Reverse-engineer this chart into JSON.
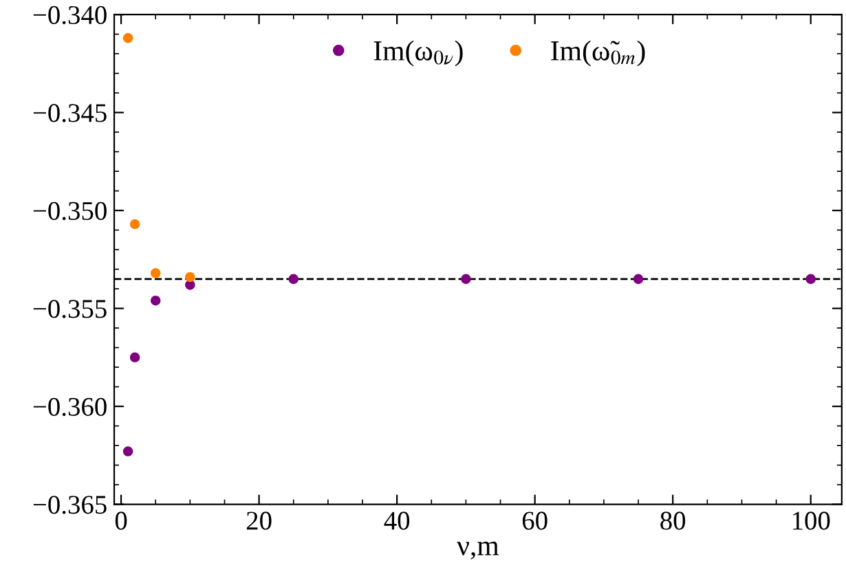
{
  "chart_data": {
    "type": "scatter",
    "xlabel": "ν,m",
    "series": [
      {
        "name": "Im(ω$_{0ν}$)",
        "color": "#800080",
        "x": [
          1,
          2,
          5,
          10,
          25,
          50,
          75,
          100
        ],
        "values": [
          -0.3623,
          -0.3575,
          -0.3546,
          -0.3538,
          -0.3535,
          -0.3535,
          -0.3535,
          -0.3535
        ]
      },
      {
        "name": "Im(ω̃$_{0m}$)",
        "color": "#ff8000",
        "x": [
          1,
          2,
          5,
          10
        ],
        "values": [
          -0.3412,
          -0.3507,
          -0.3532,
          -0.3534
        ]
      }
    ],
    "ref_lines": [
      {
        "axis": "y",
        "value": -0.3535,
        "color": "#000000",
        "line_style": "dashed"
      }
    ],
    "xlim": [
      -1,
      104.5
    ],
    "ylim": [
      -0.365,
      -0.34
    ],
    "xticks": [
      0,
      20,
      40,
      60,
      80,
      100
    ],
    "yticks": [
      {
        "value": -0.365,
        "label": "−0.365"
      },
      {
        "value": -0.36,
        "label": "−0.360"
      },
      {
        "value": -0.355,
        "label": "−0.355"
      },
      {
        "value": -0.35,
        "label": "−0.350"
      },
      {
        "value": -0.345,
        "label": "−0.345"
      },
      {
        "value": -0.34,
        "label": "−0.340"
      }
    ],
    "marker": "circle",
    "legend": "top",
    "grid": false
  }
}
